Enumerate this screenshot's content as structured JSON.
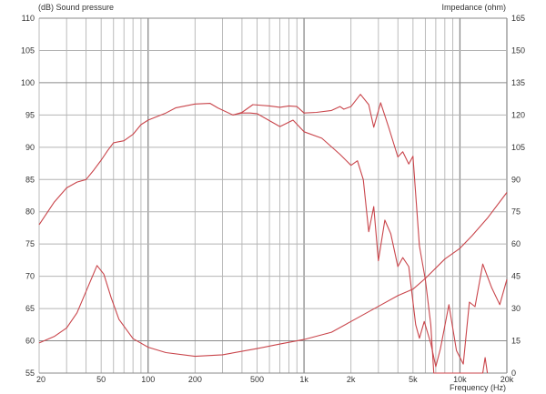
{
  "chart_data": {
    "type": "line",
    "title": "",
    "ylabel_left": "(dB)  Sound pressure",
    "ylabel_right": "Impedance  (ohm)",
    "xlabel": "Frequency  (Hz)",
    "x_scale": "log",
    "xlim": [
      20,
      20000
    ],
    "ylim_left": [
      55,
      110
    ],
    "ylim_right": [
      0,
      165
    ],
    "grid": true,
    "x_ticks": [
      20,
      50,
      100,
      200,
      500,
      1000,
      2000,
      5000,
      10000,
      20000
    ],
    "x_tick_labels": [
      "20",
      "50",
      "100",
      "200",
      "500",
      "1k",
      "2k",
      "5k",
      "10k",
      "20k"
    ],
    "y_ticks_left": [
      "110",
      "105",
      "100",
      "95",
      "90",
      "85",
      "80",
      "75",
      "70",
      "65",
      "60",
      "55"
    ],
    "y_ticks_right": [
      "165",
      "150",
      "135",
      "120",
      "105",
      "90",
      "75",
      "60",
      "45",
      "30",
      "15",
      "0"
    ],
    "line_color": "#c9454b",
    "series": [
      {
        "axis": "left",
        "x": [
          20,
          25,
          30,
          35,
          40,
          45,
          50,
          55,
          60,
          70,
          80,
          90,
          100,
          130,
          150,
          200,
          250,
          280,
          350,
          400,
          470,
          600,
          700,
          800,
          900,
          1000,
          1200,
          1500,
          1700,
          1800,
          2000,
          2300,
          2600,
          2800,
          3100,
          3500,
          4000,
          4300,
          4700,
          5000,
          5500,
          6000,
          6500,
          6800,
          14000,
          14500,
          15000
        ],
        "y": [
          78,
          81.5,
          83.7,
          84.6,
          85,
          86.5,
          88,
          89.5,
          90.7,
          91,
          92,
          93.5,
          94.2,
          95.3,
          96.1,
          96.7,
          96.8,
          96.1,
          95,
          95.4,
          96.6,
          96.4,
          96.2,
          96.4,
          96.3,
          95.3,
          95.4,
          95.7,
          96.3,
          95.9,
          96.3,
          98.2,
          96.6,
          93.1,
          96.9,
          93,
          88.5,
          89.3,
          87.4,
          88.6,
          74.7,
          69.5,
          62.5,
          55,
          55,
          57.4,
          55
        ]
      },
      {
        "axis": "left",
        "x": [
          350,
          400,
          450,
          500,
          700,
          850,
          1000,
          1300,
          1700,
          2000,
          2200,
          2400,
          2600,
          2800,
          3000,
          3300,
          3600,
          4000,
          4300,
          4700,
          5200,
          5500,
          5900,
          6500,
          7000,
          7500,
          8500,
          9500,
          10500,
          11500,
          12500,
          14000,
          16000,
          18000,
          20000
        ],
        "y": [
          95,
          95.3,
          95.3,
          95.2,
          93.2,
          94.2,
          92.4,
          91.4,
          88.9,
          87.2,
          87.9,
          85,
          76.9,
          80.8,
          72.4,
          78.7,
          76.6,
          71.5,
          72.9,
          71.5,
          62.5,
          60.4,
          63,
          59.6,
          56,
          58.8,
          65.6,
          58.5,
          56.4,
          66,
          65.3,
          71.9,
          68.2,
          65.6,
          69.5
        ]
      },
      {
        "axis": "right",
        "x": [
          20,
          25,
          30,
          35,
          40,
          47,
          52,
          58,
          65,
          80,
          100,
          130,
          200,
          300,
          500,
          700,
          1000,
          1500,
          2000,
          3000,
          4000,
          5000,
          6000,
          8000,
          10000,
          12000,
          15000,
          20000
        ],
        "y": [
          14,
          17,
          21,
          28,
          38,
          50,
          46,
          35,
          25,
          16,
          12,
          9.5,
          7.8,
          8.5,
          11.4,
          13.5,
          15.6,
          19,
          24,
          31,
          36,
          39,
          44,
          53,
          58,
          64,
          72,
          84
        ]
      }
    ]
  }
}
